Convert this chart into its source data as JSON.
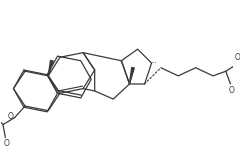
{
  "bg_color": "#ffffff",
  "line_color": "#3a3a3a",
  "line_width": 0.9,
  "figsize": [
    2.4,
    1.61
  ],
  "dpi": 100,
  "xlim": [
    0,
    10.0
  ],
  "ylim": [
    0,
    6.7
  ]
}
